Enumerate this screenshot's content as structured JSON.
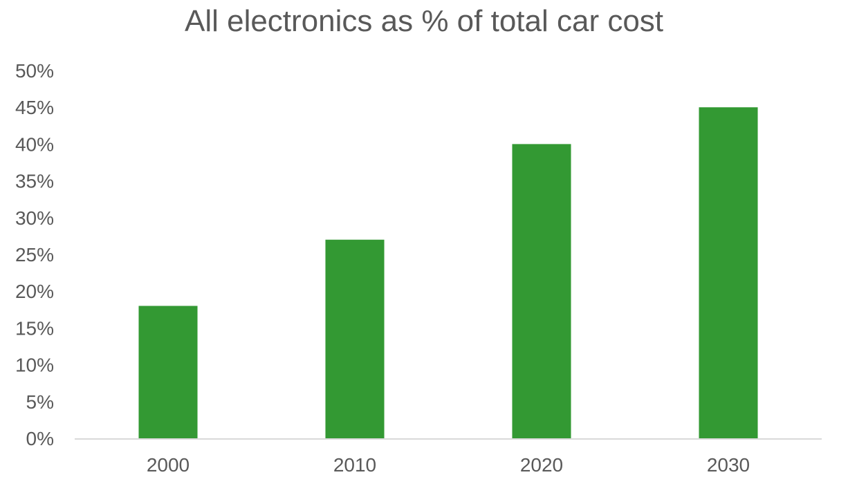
{
  "chart_data": {
    "type": "bar",
    "title": "All electronics as % of total car cost",
    "xlabel": "",
    "ylabel": "",
    "categories": [
      "2000",
      "2010",
      "2020",
      "2030"
    ],
    "values": [
      18,
      27,
      40,
      45
    ],
    "ylim": [
      0,
      50
    ],
    "yticks": [
      0,
      5,
      10,
      15,
      20,
      25,
      30,
      35,
      40,
      45,
      50
    ],
    "ytick_labels": [
      "0%",
      "5%",
      "10%",
      "15%",
      "20%",
      "25%",
      "30%",
      "35%",
      "40%",
      "45%",
      "50%"
    ],
    "grid": false,
    "legend": "none",
    "bar_color": "#339933",
    "axis_color": "#d9d9d9"
  }
}
